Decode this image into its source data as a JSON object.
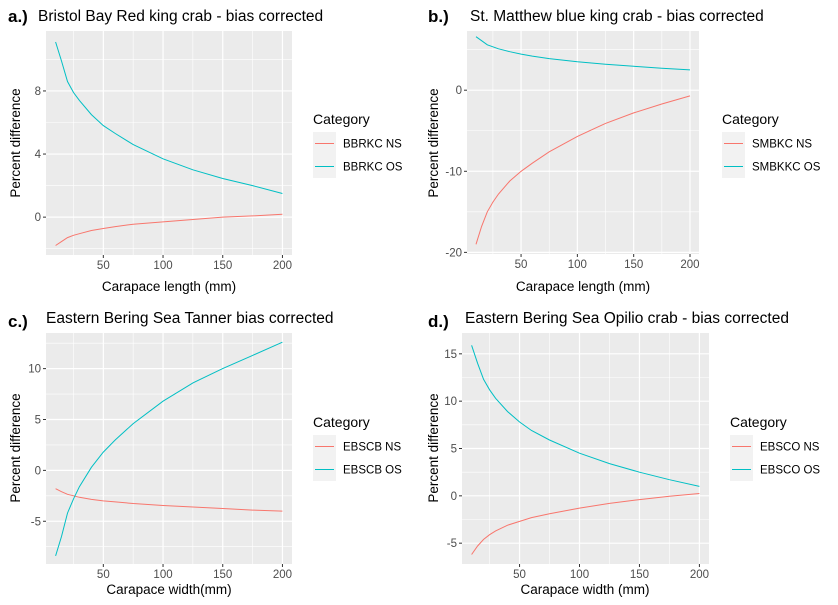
{
  "colors": {
    "ns": "#F8766D",
    "os": "#00BFC4",
    "panel_bg": "#EBEBEB",
    "grid": "#FFFFFF"
  },
  "chart_data": [
    {
      "type": "line",
      "tag": "a.)",
      "title": "Bristol Bay Red king crab - bias corrected",
      "xlabel": "Carapace length (mm)",
      "ylabel": "Percent difference",
      "xlim": [
        2,
        208
      ],
      "ylim": [
        -2.4,
        11.8
      ],
      "xticks": [
        50,
        100,
        150,
        200
      ],
      "yticks": [
        0,
        4,
        8
      ],
      "legend_title": "Category",
      "grid": true,
      "series": [
        {
          "name": "BBRKC NS",
          "color_key": "ns",
          "x": [
            10,
            15,
            20,
            25,
            30,
            40,
            50,
            60,
            75,
            100,
            125,
            150,
            175,
            200
          ],
          "y": [
            -1.8,
            -1.55,
            -1.3,
            -1.15,
            -1.05,
            -0.85,
            -0.72,
            -0.6,
            -0.45,
            -0.3,
            -0.15,
            0.0,
            0.08,
            0.18
          ]
        },
        {
          "name": "BBRKC OS",
          "color_key": "os",
          "x": [
            10,
            15,
            20,
            25,
            30,
            40,
            50,
            60,
            75,
            100,
            125,
            150,
            175,
            200
          ],
          "y": [
            11.1,
            9.9,
            8.6,
            7.9,
            7.4,
            6.5,
            5.8,
            5.3,
            4.6,
            3.7,
            3.0,
            2.45,
            2.0,
            1.5
          ]
        }
      ]
    },
    {
      "type": "line",
      "tag": "b.)",
      "title": "St. Matthew blue king crab - bias corrected",
      "xlabel": "Carapace length (mm)",
      "ylabel": "Percent difference",
      "xlim": [
        2,
        208
      ],
      "ylim": [
        -20.2,
        7.3
      ],
      "xticks": [
        50,
        100,
        150,
        200
      ],
      "yticks": [
        -20,
        -10,
        0
      ],
      "legend_title": "Category",
      "grid": true,
      "series": [
        {
          "name": "SMBKC NS",
          "color_key": "ns",
          "x": [
            10,
            15,
            20,
            25,
            30,
            40,
            50,
            60,
            75,
            100,
            125,
            150,
            175,
            200
          ],
          "y": [
            -19.0,
            -16.8,
            -15.0,
            -13.8,
            -12.8,
            -11.2,
            -10.0,
            -9.0,
            -7.6,
            -5.7,
            -4.1,
            -2.8,
            -1.7,
            -0.7
          ]
        },
        {
          "name": "SMBKKC OS",
          "color_key": "os",
          "x": [
            10,
            15,
            20,
            25,
            30,
            40,
            50,
            60,
            75,
            100,
            125,
            150,
            175,
            200
          ],
          "y": [
            6.6,
            6.1,
            5.6,
            5.35,
            5.1,
            4.75,
            4.45,
            4.2,
            3.9,
            3.5,
            3.2,
            2.95,
            2.7,
            2.5
          ]
        }
      ]
    },
    {
      "type": "line",
      "tag": "c.)",
      "title": "Eastern Bering Sea Tanner bias corrected",
      "xlabel": "Carapace width(mm)",
      "ylabel": "Percent difference",
      "xlim": [
        2,
        208
      ],
      "ylim": [
        -9.2,
        13.5
      ],
      "xticks": [
        50,
        100,
        150,
        200
      ],
      "yticks": [
        -5,
        0,
        5,
        10
      ],
      "legend_title": "Category",
      "grid": true,
      "series": [
        {
          "name": "EBSCB NS",
          "color_key": "ns",
          "x": [
            10,
            15,
            20,
            25,
            30,
            40,
            50,
            60,
            75,
            100,
            125,
            150,
            175,
            200
          ],
          "y": [
            -1.8,
            -2.1,
            -2.35,
            -2.5,
            -2.65,
            -2.85,
            -3.0,
            -3.1,
            -3.25,
            -3.45,
            -3.6,
            -3.75,
            -3.9,
            -4.0
          ]
        },
        {
          "name": "EBSCB OS",
          "color_key": "os",
          "x": [
            10,
            15,
            20,
            25,
            30,
            40,
            50,
            60,
            75,
            100,
            125,
            150,
            175,
            200
          ],
          "y": [
            -8.4,
            -6.5,
            -4.2,
            -2.8,
            -1.6,
            0.3,
            1.8,
            3.0,
            4.6,
            6.8,
            8.6,
            10.0,
            11.3,
            12.6
          ]
        }
      ]
    },
    {
      "type": "line",
      "tag": "d.)",
      "title": "Eastern Bering Sea Opilio crab - bias corrected",
      "xlabel": "Carapace width (mm)",
      "ylabel": "Percent difference",
      "xlim": [
        2,
        208
      ],
      "ylim": [
        -7.2,
        17.2
      ],
      "xticks": [
        50,
        100,
        150,
        200
      ],
      "yticks": [
        -5,
        0,
        5,
        10,
        15
      ],
      "legend_title": "Category",
      "grid": true,
      "series": [
        {
          "name": "EBSCO NS",
          "color_key": "ns",
          "x": [
            10,
            15,
            20,
            25,
            30,
            40,
            50,
            60,
            75,
            100,
            125,
            150,
            175,
            200
          ],
          "y": [
            -6.2,
            -5.3,
            -4.6,
            -4.1,
            -3.7,
            -3.1,
            -2.7,
            -2.3,
            -1.9,
            -1.3,
            -0.8,
            -0.4,
            -0.05,
            0.25
          ]
        },
        {
          "name": "EBSCO OS",
          "color_key": "os",
          "x": [
            10,
            15,
            20,
            25,
            30,
            40,
            50,
            60,
            75,
            100,
            125,
            150,
            175,
            200
          ],
          "y": [
            15.9,
            14.0,
            12.3,
            11.2,
            10.3,
            8.9,
            7.8,
            6.9,
            5.9,
            4.5,
            3.4,
            2.5,
            1.7,
            1.0
          ]
        }
      ]
    }
  ]
}
